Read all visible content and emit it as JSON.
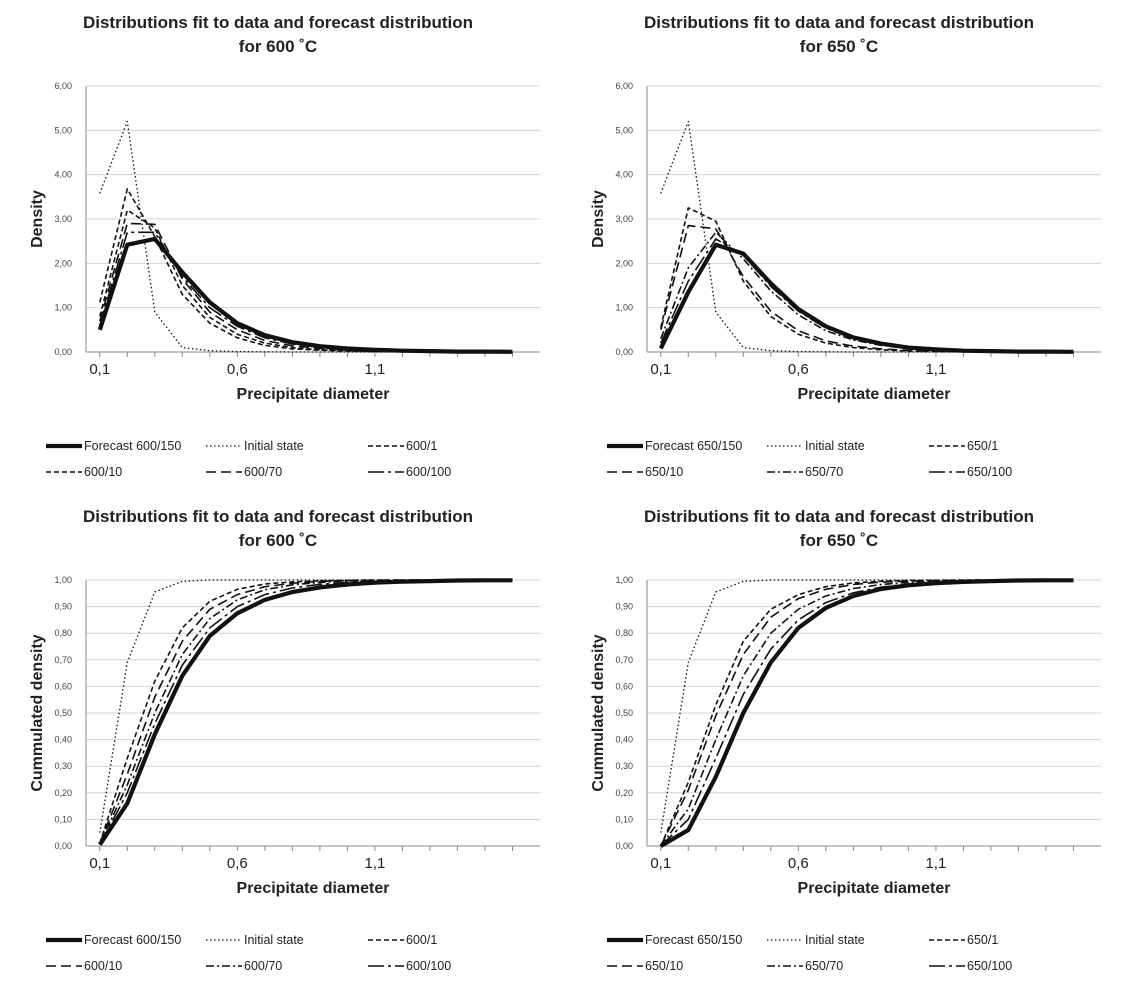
{
  "chart_data": [
    {
      "type": "line",
      "title_line1": "Distributions fit to data and forecast distribution",
      "title_line2": "for 600 ˚C",
      "xlabel": "Precipitate diameter",
      "ylabel": "Density",
      "x": [
        0.1,
        0.2,
        0.3,
        0.4,
        0.5,
        0.6,
        0.7,
        0.8,
        0.9,
        1.0,
        1.1,
        1.2,
        1.3,
        1.4,
        1.5,
        1.6
      ],
      "xlim": [
        0.05,
        1.7
      ],
      "xticks": [
        0.1,
        0.6,
        1.1
      ],
      "xtick_labels": [
        "0,1",
        "0,6",
        "1,1"
      ],
      "ylim": [
        0,
        6
      ],
      "yticks": [
        0,
        1,
        2,
        3,
        4,
        5,
        6
      ],
      "ytick_labels": [
        "0,00",
        "1,00",
        "2,00",
        "3,00",
        "4,00",
        "5,00",
        "6,00"
      ],
      "series": [
        {
          "name": "Forecast 600/150",
          "style": "thick",
          "values": [
            0.5,
            2.42,
            2.55,
            1.8,
            1.12,
            0.65,
            0.38,
            0.22,
            0.13,
            0.08,
            0.05,
            0.03,
            0.02,
            0.01,
            0.01,
            0.005
          ]
        },
        {
          "name": "Initial state",
          "style": "dotted",
          "values": [
            3.58,
            5.2,
            0.9,
            0.1,
            0.03,
            0.01,
            0.005,
            0,
            0,
            0,
            0,
            0,
            0,
            0,
            0,
            0
          ]
        },
        {
          "name": "600/1",
          "style": "short-dash",
          "values": [
            1.12,
            3.68,
            2.6,
            1.3,
            0.65,
            0.32,
            0.15,
            0.07,
            0.04,
            0.02,
            0.01,
            0.005,
            0,
            0,
            0,
            0
          ]
        },
        {
          "name": "600/10",
          "style": "short-dash",
          "values": [
            0.8,
            3.2,
            2.8,
            1.5,
            0.78,
            0.4,
            0.2,
            0.1,
            0.05,
            0.03,
            0.015,
            0.01,
            0.005,
            0,
            0,
            0
          ]
        },
        {
          "name": "600/70",
          "style": "long-dash",
          "values": [
            0.7,
            2.9,
            2.88,
            1.65,
            0.9,
            0.5,
            0.26,
            0.14,
            0.08,
            0.04,
            0.02,
            0.01,
            0.005,
            0,
            0,
            0
          ]
        },
        {
          "name": "600/100",
          "style": "long-dash-dot",
          "values": [
            0.6,
            2.7,
            2.7,
            1.7,
            1.0,
            0.58,
            0.32,
            0.18,
            0.1,
            0.06,
            0.03,
            0.02,
            0.01,
            0.005,
            0,
            0
          ]
        }
      ],
      "legend_position": "bottom"
    },
    {
      "type": "line",
      "title_line1": "Distributions fit to data and forecast distribution",
      "title_line2": "for 650 ˚C",
      "xlabel": "Precipitate diameter",
      "ylabel": "Density",
      "x": [
        0.1,
        0.2,
        0.3,
        0.4,
        0.5,
        0.6,
        0.7,
        0.8,
        0.9,
        1.0,
        1.1,
        1.2,
        1.3,
        1.4,
        1.5,
        1.6
      ],
      "xlim": [
        0.05,
        1.7
      ],
      "xticks": [
        0.1,
        0.6,
        1.1
      ],
      "xtick_labels": [
        "0,1",
        "0,6",
        "1,1"
      ],
      "ylim": [
        0,
        6
      ],
      "yticks": [
        0,
        1,
        2,
        3,
        4,
        5,
        6
      ],
      "ytick_labels": [
        "0,00",
        "1,00",
        "2,00",
        "3,00",
        "4,00",
        "5,00",
        "6,00"
      ],
      "series": [
        {
          "name": "Forecast 650/150",
          "style": "thick",
          "values": [
            0.08,
            1.35,
            2.42,
            2.22,
            1.55,
            0.97,
            0.58,
            0.33,
            0.19,
            0.1,
            0.06,
            0.03,
            0.02,
            0.01,
            0.01,
            0.005
          ]
        },
        {
          "name": "Initial state",
          "style": "dotted",
          "values": [
            3.58,
            5.2,
            0.9,
            0.1,
            0.03,
            0.01,
            0.005,
            0,
            0,
            0,
            0,
            0,
            0,
            0,
            0,
            0
          ]
        },
        {
          "name": "650/1",
          "style": "short-dash",
          "values": [
            0.55,
            3.25,
            2.95,
            1.6,
            0.8,
            0.4,
            0.2,
            0.1,
            0.05,
            0.025,
            0.01,
            0.005,
            0,
            0,
            0,
            0
          ]
        },
        {
          "name": "650/10",
          "style": "long-dash",
          "values": [
            0.5,
            2.85,
            2.78,
            1.7,
            0.92,
            0.48,
            0.25,
            0.13,
            0.07,
            0.035,
            0.02,
            0.01,
            0.005,
            0,
            0,
            0
          ]
        },
        {
          "name": "650/70",
          "style": "dash-dot",
          "values": [
            0.3,
            1.9,
            2.7,
            2.1,
            1.38,
            0.84,
            0.48,
            0.27,
            0.15,
            0.08,
            0.04,
            0.02,
            0.01,
            0.005,
            0,
            0
          ]
        },
        {
          "name": "650/100",
          "style": "long-dash-dot",
          "values": [
            0.2,
            1.6,
            2.55,
            2.18,
            1.48,
            0.92,
            0.54,
            0.3,
            0.17,
            0.09,
            0.05,
            0.025,
            0.015,
            0.005,
            0,
            0
          ]
        }
      ],
      "legend_position": "bottom"
    },
    {
      "type": "line",
      "title_line1": "Distributions fit to data and forecast distribution",
      "title_line2": "for 600 ˚C",
      "xlabel": "Precipitate diameter",
      "ylabel": "Cummulated density",
      "x": [
        0.1,
        0.2,
        0.3,
        0.4,
        0.5,
        0.6,
        0.7,
        0.8,
        0.9,
        1.0,
        1.1,
        1.2,
        1.3,
        1.4,
        1.5,
        1.6
      ],
      "xlim": [
        0.05,
        1.7
      ],
      "xticks": [
        0.1,
        0.6,
        1.1
      ],
      "xtick_labels": [
        "0,1",
        "0,6",
        "1,1"
      ],
      "ylim": [
        0,
        1
      ],
      "yticks": [
        0,
        0.1,
        0.2,
        0.3,
        0.4,
        0.5,
        0.6,
        0.7,
        0.8,
        0.9,
        1.0
      ],
      "ytick_labels": [
        "0,00",
        "0,10",
        "0,20",
        "0,30",
        "0,40",
        "0,50",
        "0,60",
        "0,70",
        "0,80",
        "0,90",
        "1,00"
      ],
      "series": [
        {
          "name": "Forecast 600/150",
          "style": "thick",
          "values": [
            0.005,
            0.16,
            0.42,
            0.64,
            0.79,
            0.875,
            0.925,
            0.955,
            0.972,
            0.983,
            0.99,
            0.994,
            0.996,
            0.998,
            0.999,
            0.999
          ]
        },
        {
          "name": "Initial state",
          "style": "dotted",
          "values": [
            0.05,
            0.69,
            0.955,
            0.995,
            1.0,
            1.0,
            1.0,
            1.0,
            1.0,
            1.0,
            1.0,
            1.0,
            1.0,
            1.0,
            1.0,
            1.0
          ]
        },
        {
          "name": "600/1",
          "style": "short-dash",
          "values": [
            0.01,
            0.33,
            0.62,
            0.82,
            0.92,
            0.965,
            0.985,
            0.993,
            0.997,
            0.999,
            1.0,
            1.0,
            1.0,
            1.0,
            1.0,
            1.0
          ]
        },
        {
          "name": "600/10",
          "style": "long-dash",
          "values": [
            0.01,
            0.27,
            0.56,
            0.77,
            0.89,
            0.945,
            0.975,
            0.988,
            0.995,
            0.998,
            0.999,
            1.0,
            1.0,
            1.0,
            1.0,
            1.0
          ]
        },
        {
          "name": "600/70",
          "style": "dash-dot",
          "values": [
            0.008,
            0.23,
            0.5,
            0.72,
            0.855,
            0.925,
            0.963,
            0.982,
            0.991,
            0.996,
            0.998,
            0.999,
            1.0,
            1.0,
            1.0,
            1.0
          ]
        },
        {
          "name": "600/100",
          "style": "long-dash-dot",
          "values": [
            0.006,
            0.2,
            0.46,
            0.68,
            0.82,
            0.9,
            0.945,
            0.97,
            0.984,
            0.991,
            0.995,
            0.997,
            0.999,
            1.0,
            1.0,
            1.0
          ]
        }
      ],
      "legend_position": "bottom"
    },
    {
      "type": "line",
      "title_line1": "Distributions fit to data and forecast distribution",
      "title_line2": "for 650 ˚C",
      "xlabel": "Precipitate diameter",
      "ylabel": "Cummulated density",
      "x": [
        0.1,
        0.2,
        0.3,
        0.4,
        0.5,
        0.6,
        0.7,
        0.8,
        0.9,
        1.0,
        1.1,
        1.2,
        1.3,
        1.4,
        1.5,
        1.6
      ],
      "xlim": [
        0.05,
        1.7
      ],
      "xticks": [
        0.1,
        0.6,
        1.1
      ],
      "xtick_labels": [
        "0,1",
        "0,6",
        "1,1"
      ],
      "ylim": [
        0,
        1
      ],
      "yticks": [
        0,
        0.1,
        0.2,
        0.3,
        0.4,
        0.5,
        0.6,
        0.7,
        0.8,
        0.9,
        1.0
      ],
      "ytick_labels": [
        "0,00",
        "0,10",
        "0,20",
        "0,30",
        "0,40",
        "0,50",
        "0,60",
        "0,70",
        "0,80",
        "0,90",
        "1,00"
      ],
      "series": [
        {
          "name": "Forecast 650/150",
          "style": "thick",
          "values": [
            0.0,
            0.06,
            0.26,
            0.5,
            0.69,
            0.82,
            0.895,
            0.94,
            0.966,
            0.98,
            0.988,
            0.993,
            0.996,
            0.998,
            0.999,
            0.999
          ]
        },
        {
          "name": "Initial state",
          "style": "dotted",
          "values": [
            0.05,
            0.69,
            0.955,
            0.995,
            1.0,
            1.0,
            1.0,
            1.0,
            1.0,
            1.0,
            1.0,
            1.0,
            1.0,
            1.0,
            1.0,
            1.0
          ]
        },
        {
          "name": "650/1",
          "style": "short-dash",
          "values": [
            0.0,
            0.24,
            0.53,
            0.77,
            0.89,
            0.945,
            0.975,
            0.989,
            0.995,
            0.998,
            0.999,
            1.0,
            1.0,
            1.0,
            1.0,
            1.0
          ]
        },
        {
          "name": "650/10",
          "style": "long-dash",
          "values": [
            0.0,
            0.21,
            0.49,
            0.72,
            0.86,
            0.93,
            0.965,
            0.983,
            0.992,
            0.996,
            0.998,
            0.999,
            1.0,
            1.0,
            1.0,
            1.0
          ]
        },
        {
          "name": "650/70",
          "style": "dash-dot",
          "values": [
            0.0,
            0.14,
            0.4,
            0.64,
            0.8,
            0.89,
            0.94,
            0.968,
            0.983,
            0.991,
            0.995,
            0.997,
            0.999,
            1.0,
            1.0,
            1.0
          ]
        },
        {
          "name": "650/100",
          "style": "long-dash-dot",
          "values": [
            0.0,
            0.1,
            0.33,
            0.57,
            0.74,
            0.85,
            0.915,
            0.952,
            0.973,
            0.985,
            0.992,
            0.995,
            0.998,
            0.999,
            1.0,
            1.0
          ]
        }
      ],
      "legend_position": "bottom"
    }
  ]
}
